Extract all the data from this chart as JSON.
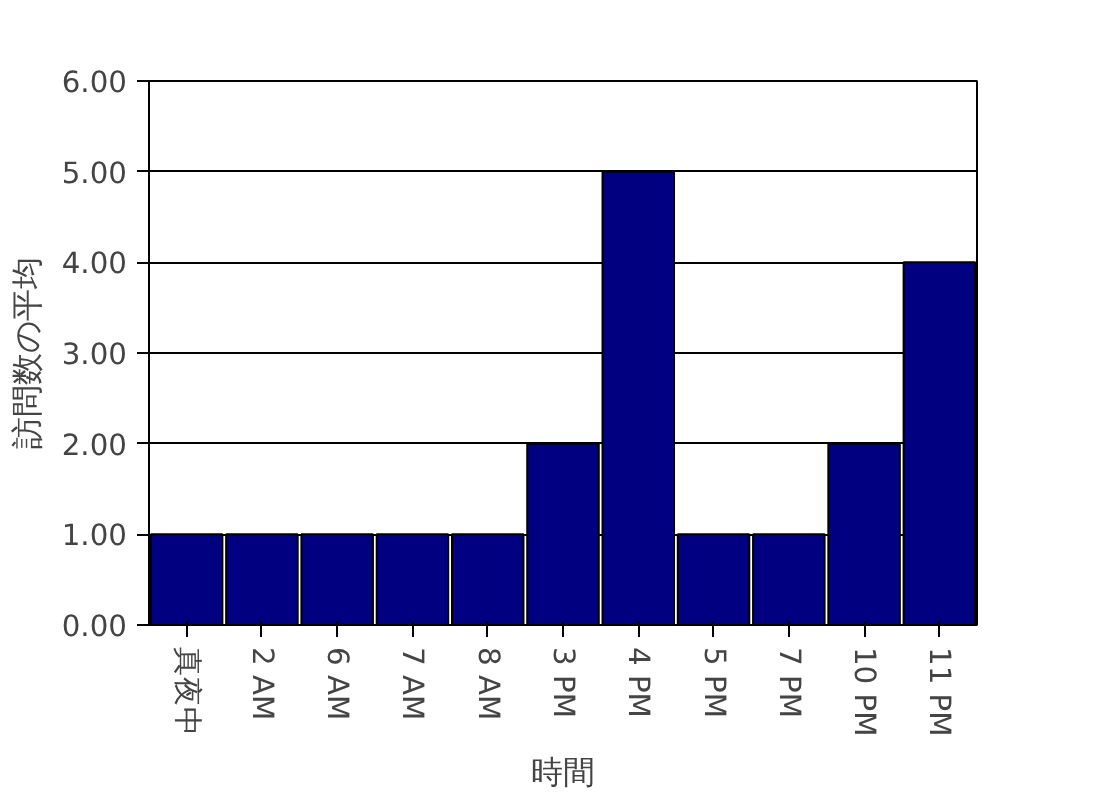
{
  "chart_data": {
    "type": "bar",
    "xlabel": "時間",
    "ylabel": "訪問数の平均",
    "categories": [
      "真夜中",
      "2 AM",
      "6 AM",
      "7 AM",
      "8 AM",
      "3 PM",
      "4 PM",
      "5 PM",
      "7 PM",
      "10 PM",
      "11 PM"
    ],
    "values": [
      1,
      1,
      1,
      1,
      1,
      2,
      5,
      1,
      1,
      2,
      4
    ],
    "color": "#000080",
    "ylim": [
      0,
      6
    ],
    "yticks": [
      {
        "value": 0,
        "label": "0.00"
      },
      {
        "value": 1,
        "label": "1.00"
      },
      {
        "value": 2,
        "label": "2.00"
      },
      {
        "value": 3,
        "label": "3.00"
      },
      {
        "value": 4,
        "label": "4.00"
      },
      {
        "value": 5,
        "label": "5.00"
      },
      {
        "value": 6,
        "label": "6.00"
      }
    ],
    "grid": "y"
  }
}
